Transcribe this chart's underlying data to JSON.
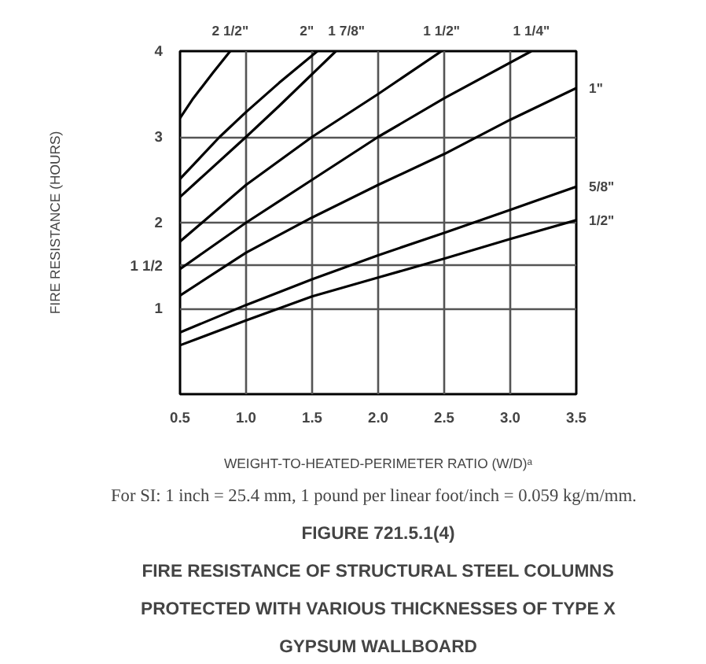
{
  "chart_data": {
    "type": "line",
    "title": "FIGURE 721.5.1(4)",
    "subtitle": "FIRE RESISTANCE OF STRUCTURAL STEEL COLUMNS PROTECTED WITH VARIOUS THICKNESSES OF TYPE X GYPSUM WALLBOARD",
    "xlabel": "WEIGHT-TO-HEATED-PERIMETER RATIO (W/D)ᵃ",
    "ylabel": "FIRE RESISTANCE (HOURS)",
    "annotations": [
      "For SI:   1 inch = 25.4 mm, 1 pound per linear foot/inch = 0.059 kg/m/mm."
    ],
    "xlim": [
      0.5,
      3.5
    ],
    "ylim": [
      0,
      4
    ],
    "xticks": [
      0.5,
      {
        "value": 1,
        "label": "1.0"
      },
      1.5,
      {
        "value": 2,
        "label": "2.0"
      },
      2.5,
      {
        "value": 3,
        "label": "3.0"
      },
      3.5
    ],
    "yticks": [
      1,
      {
        "value": 1.5,
        "label": "1 1/2"
      },
      2,
      3,
      4
    ],
    "grid": true,
    "legend": false,
    "marker": "none",
    "line_style": "solid",
    "series": [
      {
        "name": "2 1/2\"",
        "color": "#000000",
        "x": [
          0.5,
          0.6,
          0.75,
          0.88
        ],
        "values": [
          3.22,
          3.45,
          3.75,
          4.0
        ]
      },
      {
        "name": "2\"",
        "color": "#000000",
        "x": [
          0.5,
          0.8,
          1.0,
          1.25,
          1.54
        ],
        "values": [
          2.51,
          3.0,
          3.29,
          3.63,
          4.0
        ]
      },
      {
        "name": "1 7/8\"",
        "color": "#000000",
        "x": [
          0.5,
          1.0,
          1.25,
          1.68
        ],
        "values": [
          2.3,
          3.0,
          3.36,
          4.0
        ]
      },
      {
        "name": "1 1/2\"",
        "color": "#000000",
        "x": [
          0.5,
          1.0,
          1.5,
          2.0,
          2.48
        ],
        "values": [
          1.78,
          2.44,
          3.0,
          3.5,
          4.0
        ]
      },
      {
        "name": "1 1/4\"",
        "color": "#000000",
        "x": [
          0.5,
          1.0,
          1.5,
          2.0,
          2.5,
          3.16
        ],
        "values": [
          1.46,
          2.0,
          2.5,
          3.0,
          3.45,
          4.0
        ]
      },
      {
        "name": "1\"",
        "color": "#000000",
        "x": [
          0.5,
          1.0,
          1.5,
          2.0,
          2.5,
          3.0,
          3.5
        ],
        "values": [
          1.15,
          1.65,
          2.06,
          2.44,
          2.8,
          3.2,
          3.57
        ]
      },
      {
        "name": "5/8\"",
        "color": "#000000",
        "x": [
          0.5,
          1.0,
          1.5,
          2.0,
          2.5,
          3.0,
          3.5
        ],
        "values": [
          0.72,
          1.04,
          1.34,
          1.62,
          1.88,
          2.15,
          2.42
        ]
      },
      {
        "name": "1/2\"",
        "color": "#000000",
        "x": [
          0.5,
          1.0,
          1.5,
          2.0,
          2.5,
          3.0,
          3.5
        ],
        "values": [
          0.57,
          0.86,
          1.14,
          1.36,
          1.58,
          1.81,
          2.03
        ]
      }
    ]
  }
}
